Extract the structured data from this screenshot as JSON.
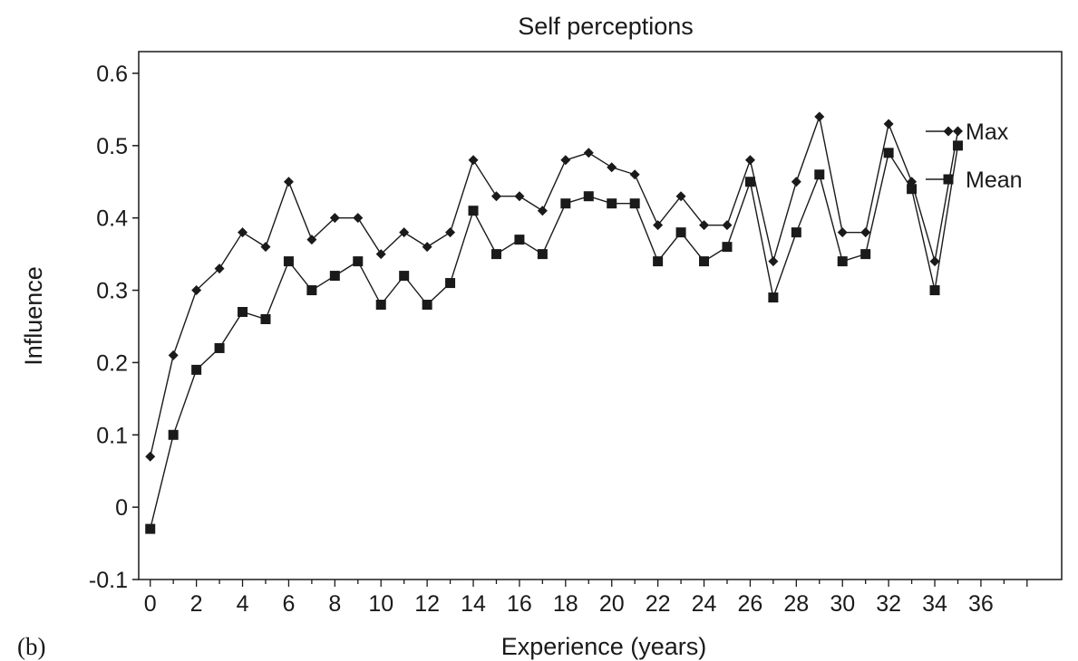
{
  "panel_label": "(b)",
  "chart_data": {
    "type": "line",
    "title": "Self perceptions",
    "xlabel": "Experience (years)",
    "ylabel": "Influence",
    "xlim": [
      -0.5,
      39.5
    ],
    "ylim": [
      -0.1,
      0.63
    ],
    "x_ticks": [
      0,
      2,
      4,
      6,
      8,
      10,
      12,
      14,
      16,
      18,
      20,
      22,
      24,
      26,
      28,
      30,
      32,
      34,
      36
    ],
    "y_ticks": [
      -0.1,
      0,
      0.1,
      0.2,
      0.3,
      0.4,
      0.5,
      0.6
    ],
    "y_tick_labels": [
      "-0.1",
      "0",
      "0.1",
      "0.2",
      "0.3",
      "0.4",
      "0.5",
      "0.6"
    ],
    "grid": false,
    "legend_placement": "right",
    "x": [
      0,
      1,
      2,
      3,
      4,
      5,
      6,
      7,
      8,
      9,
      10,
      11,
      12,
      13,
      14,
      15,
      16,
      17,
      18,
      19,
      20,
      21,
      22,
      23,
      24,
      25,
      26,
      27,
      28,
      29,
      30,
      31,
      32,
      33,
      34,
      35
    ],
    "series": [
      {
        "name": "Max",
        "marker": "diamond",
        "color": "#1a1a1a",
        "values": [
          0.07,
          0.21,
          0.3,
          0.33,
          0.38,
          0.36,
          0.45,
          0.37,
          0.4,
          0.4,
          0.35,
          0.38,
          0.36,
          0.38,
          0.48,
          0.43,
          0.43,
          0.41,
          0.48,
          0.49,
          0.47,
          0.46,
          0.39,
          0.43,
          0.39,
          0.39,
          0.48,
          0.34,
          0.45,
          0.54,
          0.38,
          0.38,
          0.53,
          0.45,
          0.34,
          0.52
        ]
      },
      {
        "name": "Mean",
        "marker": "square",
        "color": "#1a1a1a",
        "values": [
          -0.03,
          0.1,
          0.19,
          0.22,
          0.27,
          0.26,
          0.34,
          0.3,
          0.32,
          0.34,
          0.28,
          0.32,
          0.28,
          0.31,
          0.41,
          0.35,
          0.37,
          0.35,
          0.42,
          0.43,
          0.42,
          0.42,
          0.34,
          0.38,
          0.34,
          0.36,
          0.45,
          0.29,
          0.38,
          0.46,
          0.34,
          0.35,
          0.49,
          0.44,
          0.3,
          0.5
        ]
      }
    ]
  }
}
